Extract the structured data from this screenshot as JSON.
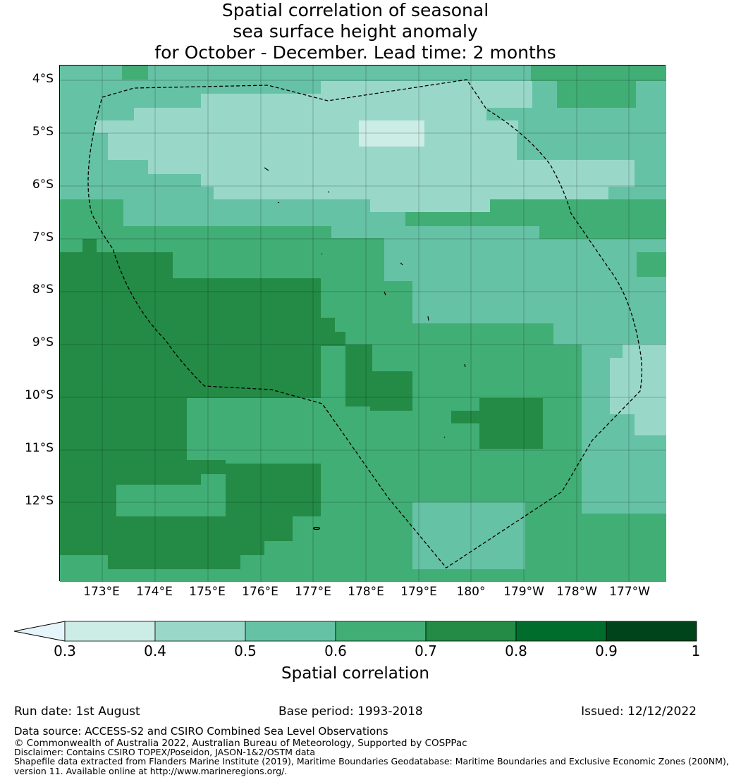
{
  "title": {
    "line1": "Spatial correlation of seasonal",
    "line2": "sea surface height anomaly",
    "line3": "for October - December. Lead time: 2 months"
  },
  "map": {
    "lat_labels": [
      "4°S",
      "5°S",
      "6°S",
      "7°S",
      "8°S",
      "9°S",
      "10°S",
      "11°S",
      "12°S"
    ],
    "lon_labels": [
      "173°E",
      "174°E",
      "175°E",
      "176°E",
      "177°E",
      "178°E",
      "179°E",
      "180°",
      "179°W",
      "178°W",
      "177°W"
    ],
    "boundary_style": "dashed black line (EEZ boundary)",
    "land": "small islands outlined in black"
  },
  "colorbar": {
    "ticks": [
      "0.3",
      "0.4",
      "0.5",
      "0.6",
      "0.7",
      "0.8",
      "0.9",
      "1"
    ],
    "colors": [
      "#ccece6",
      "#99d8c9",
      "#66c2a4",
      "#41ae76",
      "#238b45",
      "#006d2c",
      "#00441b"
    ],
    "under_color": "#e5f5f9",
    "label": "Spatial correlation"
  },
  "info": {
    "run_date": "Run date: 1st August",
    "base_period": "Base period: 1993-2018",
    "issued": "Issued: 12/12/2022",
    "data_source": "Data source: ACCESS-S2 and CSIRO Combined Sea Level Observations",
    "copyright": "© Commonwealth of Australia 2022, Australian Bureau of Meteorology, Supported by COSPPac",
    "disclaimer": "Disclaimer: Contains CSIRO TOPEX/Poseidon, JASON-1&2/OSTM data",
    "shapefile1": "Shapefile data extracted from Flanders Marine Institute (2019), Maritime Boundaries Geodatabase: Maritime Boundaries and Exclusive Economic Zones (200NM),",
    "shapefile2": "version 11. Available online at http://www.marineregions.org/."
  }
}
